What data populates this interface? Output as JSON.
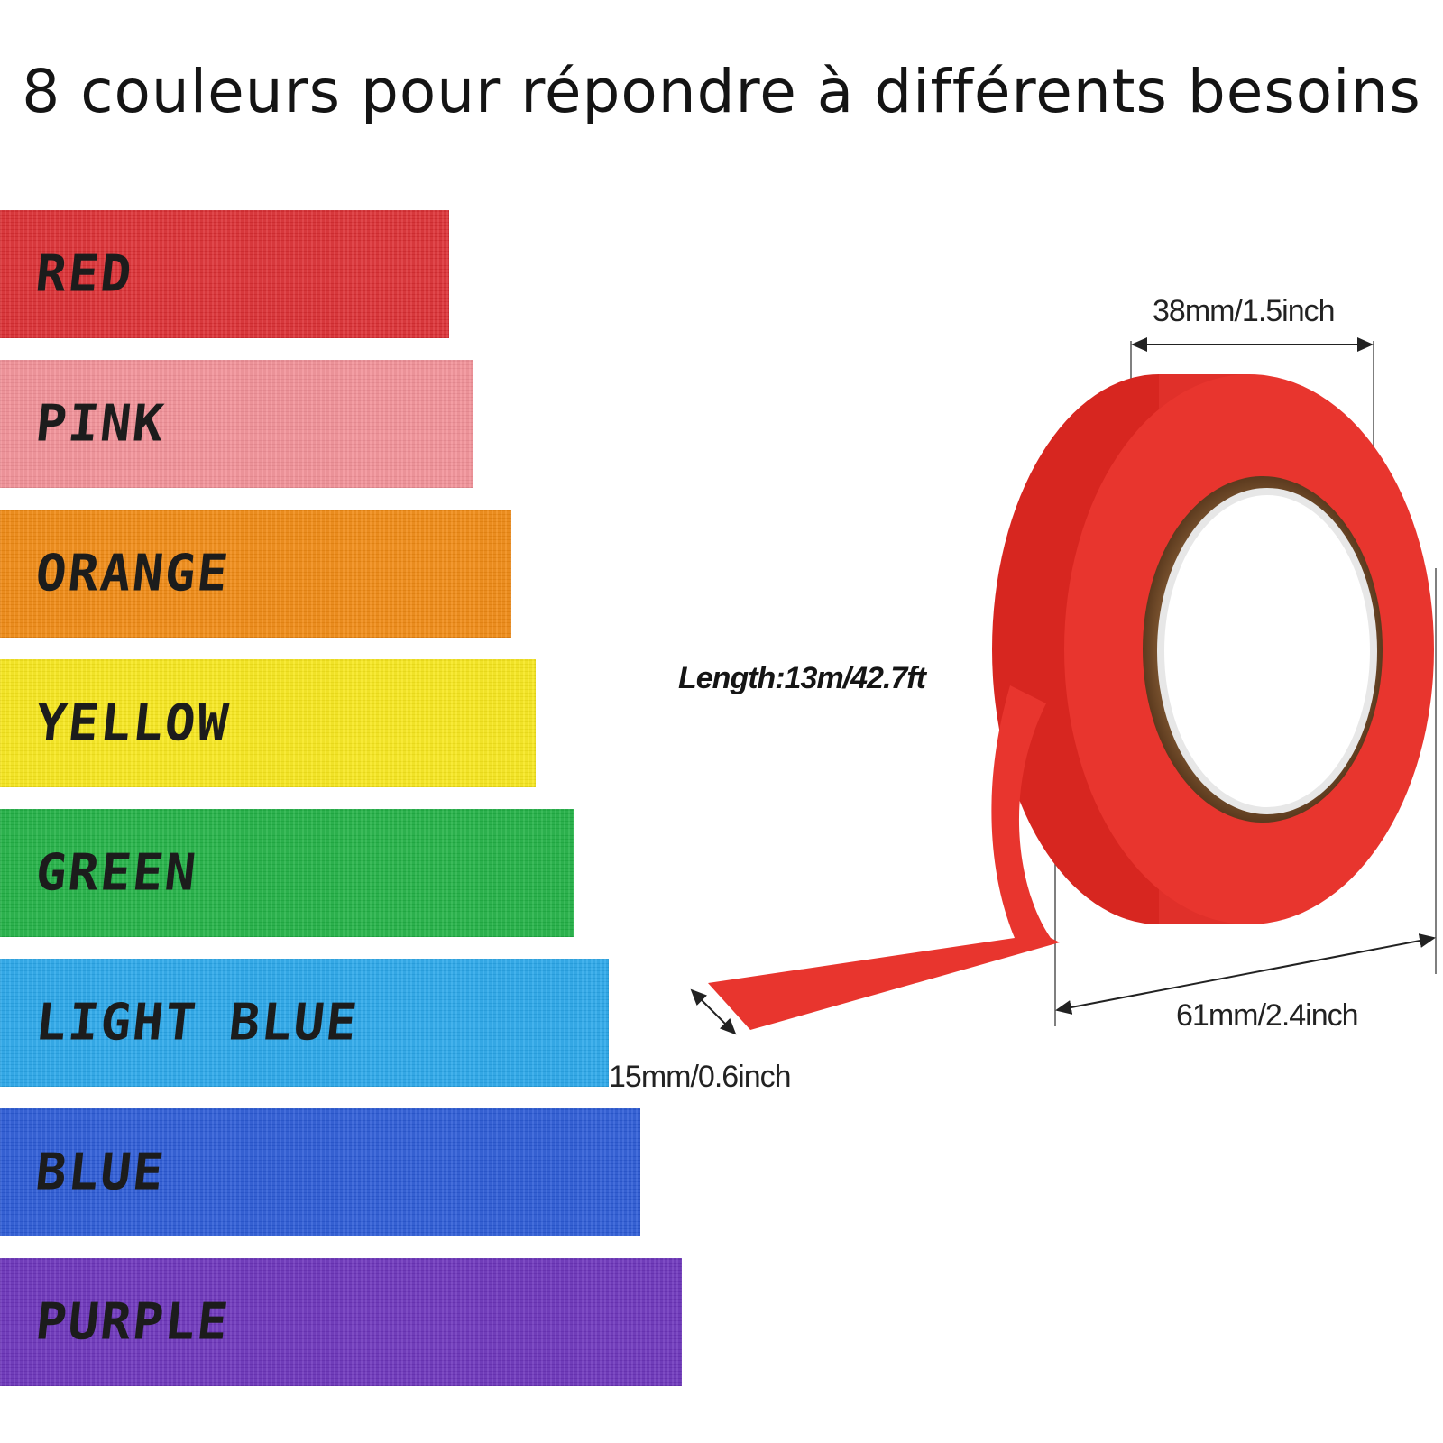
{
  "title": "8 couleurs pour répondre à différents besoins",
  "strips": [
    {
      "label": "RED",
      "color": "#dc2f34"
    },
    {
      "label": "PINK",
      "color": "#f29198"
    },
    {
      "label": "ORANGE",
      "color": "#f08a14"
    },
    {
      "label": "YELLOW",
      "color": "#f8e81d"
    },
    {
      "label": "GREEN",
      "color": "#22b246"
    },
    {
      "label": "LIGHT BLUE",
      "color": "#2ba8ea"
    },
    {
      "label": "BLUE",
      "color": "#2c5bd6"
    },
    {
      "label": "PURPLE",
      "color": "#6d35bc"
    }
  ],
  "tape_roll": {
    "color": "#e8352e",
    "core_color": "#7a5432",
    "width_label": "38mm/1.5inch",
    "diameter_label": "61mm/2.4inch",
    "tape_width_label": "15mm/0.6inch",
    "length_label": "Length:13m/42.7ft"
  }
}
